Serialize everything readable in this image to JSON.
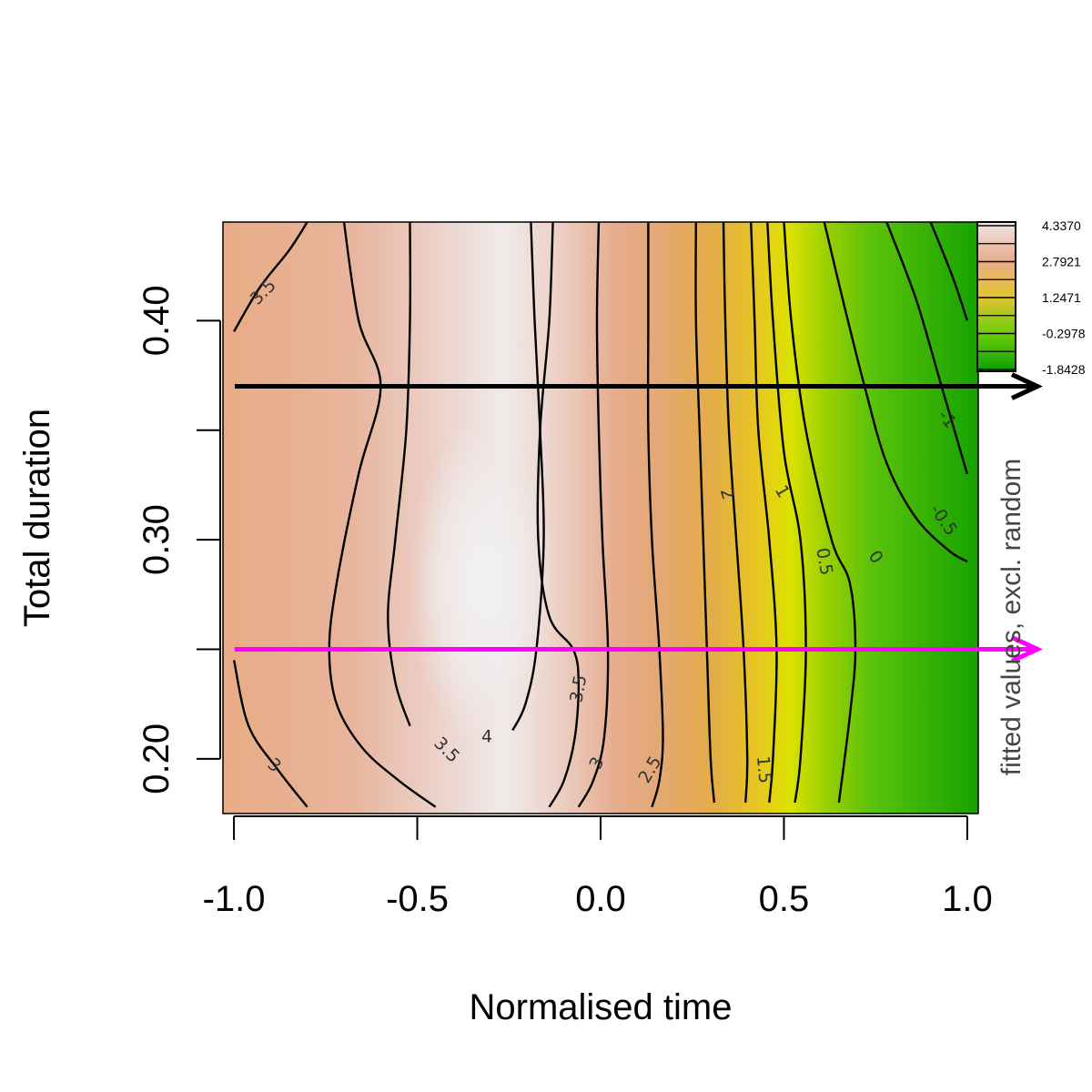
{
  "chart_data": {
    "type": "heatmap",
    "subtype": "contour",
    "xlabel": "Normalised time",
    "ylabel": "Total duration",
    "side_label": "fitted values, excl. random",
    "xlim": [
      -1.03,
      1.03
    ],
    "ylim": [
      0.175,
      0.445
    ],
    "x_ticks": [
      {
        "value": -1.0,
        "label": "-1.0"
      },
      {
        "value": -0.5,
        "label": "-0.5"
      },
      {
        "value": 0.0,
        "label": "0.0"
      },
      {
        "value": 0.5,
        "label": "0.5"
      },
      {
        "value": 1.0,
        "label": "1.0"
      }
    ],
    "y_ticks": [
      {
        "value": 0.2,
        "label": "0.20"
      },
      {
        "value": 0.25,
        "label": ""
      },
      {
        "value": 0.3,
        "label": "0.30"
      },
      {
        "value": 0.35,
        "label": ""
      },
      {
        "value": 0.4,
        "label": "0.40"
      }
    ],
    "z_range": [
      -1.8428,
      4.337
    ],
    "legend_labels": [
      "4.3370",
      "2.7921",
      "1.2471",
      "-0.2978",
      "-1.8428"
    ],
    "colors": {
      "high": "#f0f0f0",
      "upper_mid": "#e8a886",
      "mid": "#e5b434",
      "yellow": "#dfe000",
      "lower_mid": "#58c008",
      "low": "#00a000"
    },
    "contours": [
      {
        "level": "-1",
        "points": [
          [
            0.78,
            0.445
          ],
          [
            0.86,
            0.41
          ],
          [
            0.93,
            0.37
          ],
          [
            1.0,
            0.33
          ]
        ]
      },
      {
        "level": "-1",
        "points": [
          [
            0.9,
            0.445
          ],
          [
            0.96,
            0.42
          ],
          [
            1.0,
            0.4
          ]
        ]
      },
      {
        "level": "-0.5",
        "points": [
          [
            0.61,
            0.445
          ],
          [
            0.66,
            0.41
          ],
          [
            0.72,
            0.37
          ],
          [
            0.78,
            0.335
          ],
          [
            0.86,
            0.31
          ],
          [
            0.95,
            0.295
          ],
          [
            1.0,
            0.29
          ]
        ]
      },
      {
        "level": "0",
        "points": [
          [
            0.5,
            0.445
          ],
          [
            0.52,
            0.4
          ],
          [
            0.56,
            0.35
          ],
          [
            0.63,
            0.3
          ],
          [
            0.68,
            0.28
          ],
          [
            0.695,
            0.25
          ],
          [
            0.68,
            0.22
          ],
          [
            0.65,
            0.18
          ]
        ]
      },
      {
        "level": "0.5",
        "points": [
          [
            0.455,
            0.445
          ],
          [
            0.47,
            0.4
          ],
          [
            0.5,
            0.34
          ],
          [
            0.545,
            0.3
          ],
          [
            0.56,
            0.25
          ],
          [
            0.545,
            0.2
          ],
          [
            0.53,
            0.18
          ]
        ]
      },
      {
        "level": "1",
        "points": [
          [
            0.41,
            0.445
          ],
          [
            0.42,
            0.4
          ],
          [
            0.43,
            0.35
          ],
          [
            0.46,
            0.3
          ],
          [
            0.48,
            0.25
          ],
          [
            0.47,
            0.2
          ],
          [
            0.46,
            0.18
          ]
        ]
      },
      {
        "level": "1.5",
        "points": [
          [
            0.335,
            0.445
          ],
          [
            0.34,
            0.4
          ],
          [
            0.35,
            0.35
          ],
          [
            0.37,
            0.3
          ],
          [
            0.39,
            0.25
          ],
          [
            0.4,
            0.2
          ],
          [
            0.395,
            0.18
          ]
        ]
      },
      {
        "level": "2",
        "points": [
          [
            0.26,
            0.445
          ],
          [
            0.26,
            0.4
          ],
          [
            0.27,
            0.35
          ],
          [
            0.28,
            0.3
          ],
          [
            0.29,
            0.25
          ],
          [
            0.3,
            0.2
          ],
          [
            0.31,
            0.18
          ]
        ]
      },
      {
        "level": "2.5",
        "points": [
          [
            0.13,
            0.445
          ],
          [
            0.13,
            0.4
          ],
          [
            0.13,
            0.35
          ],
          [
            0.14,
            0.3
          ],
          [
            0.16,
            0.25
          ],
          [
            0.17,
            0.21
          ],
          [
            0.16,
            0.19
          ],
          [
            0.14,
            0.178
          ]
        ]
      },
      {
        "level": "3",
        "points": [
          [
            -0.005,
            0.445
          ],
          [
            -0.01,
            0.4
          ],
          [
            -0.005,
            0.35
          ],
          [
            0.005,
            0.3
          ],
          [
            0.02,
            0.25
          ],
          [
            0.01,
            0.21
          ],
          [
            -0.02,
            0.19
          ],
          [
            -0.06,
            0.178
          ]
        ]
      },
      {
        "level": "3.5",
        "points": [
          [
            -0.7,
            0.445
          ],
          [
            -0.66,
            0.4
          ],
          [
            -0.6,
            0.37
          ],
          [
            -0.66,
            0.33
          ],
          [
            -0.72,
            0.28
          ],
          [
            -0.74,
            0.25
          ],
          [
            -0.72,
            0.225
          ],
          [
            -0.65,
            0.205
          ],
          [
            -0.55,
            0.19
          ],
          [
            -0.45,
            0.178
          ]
        ]
      },
      {
        "level": "3.5",
        "points": [
          [
            -0.13,
            0.445
          ],
          [
            -0.14,
            0.4
          ],
          [
            -0.165,
            0.35
          ],
          [
            -0.17,
            0.3
          ],
          [
            -0.14,
            0.265
          ],
          [
            -0.075,
            0.25
          ],
          [
            -0.06,
            0.235
          ],
          [
            -0.07,
            0.21
          ],
          [
            -0.1,
            0.19
          ],
          [
            -0.14,
            0.178
          ]
        ]
      },
      {
        "level": "3",
        "points": [
          [
            -1.0,
            0.245
          ],
          [
            -0.96,
            0.215
          ],
          [
            -0.88,
            0.195
          ],
          [
            -0.8,
            0.178
          ]
        ]
      },
      {
        "level": "3.5",
        "points": [
          [
            -1.0,
            0.395
          ],
          [
            -0.93,
            0.415
          ],
          [
            -0.85,
            0.432
          ],
          [
            -0.8,
            0.445
          ]
        ]
      },
      {
        "level": "4",
        "points": [
          [
            -0.52,
            0.445
          ],
          [
            -0.52,
            0.4
          ],
          [
            -0.53,
            0.35
          ],
          [
            -0.56,
            0.3
          ],
          [
            -0.58,
            0.265
          ],
          [
            -0.56,
            0.235
          ],
          [
            -0.52,
            0.215
          ]
        ]
      },
      {
        "level": "4",
        "points": [
          [
            -0.24,
            0.213
          ],
          [
            -0.205,
            0.225
          ],
          [
            -0.175,
            0.25
          ],
          [
            -0.155,
            0.3
          ],
          [
            -0.165,
            0.35
          ],
          [
            -0.18,
            0.4
          ],
          [
            -0.19,
            0.445
          ]
        ]
      }
    ],
    "contour_labels": [
      {
        "text": "3.5",
        "x": -0.92,
        "y": 0.413,
        "angle": -45
      },
      {
        "text": "3",
        "x": -0.89,
        "y": 0.197,
        "angle": 40
      },
      {
        "text": "3.5",
        "x": -0.42,
        "y": 0.204,
        "angle": 45
      },
      {
        "text": "4",
        "x": -0.31,
        "y": 0.21,
        "angle": 0
      },
      {
        "text": "3.5",
        "x": -0.06,
        "y": 0.232,
        "angle": -80
      },
      {
        "text": "3",
        "x": -0.01,
        "y": 0.198,
        "angle": -65
      },
      {
        "text": "2.5",
        "x": 0.135,
        "y": 0.195,
        "angle": -60
      },
      {
        "text": "2",
        "x": 0.345,
        "y": 0.321,
        "angle": 72
      },
      {
        "text": "1.5",
        "x": 0.445,
        "y": 0.195,
        "angle": 85
      },
      {
        "text": "1",
        "x": 0.495,
        "y": 0.322,
        "angle": 60
      },
      {
        "text": "0.5",
        "x": 0.61,
        "y": 0.29,
        "angle": 80
      },
      {
        "text": "0",
        "x": 0.75,
        "y": 0.292,
        "angle": 55
      },
      {
        "text": "-0.5",
        "x": 0.935,
        "y": 0.309,
        "angle": 55
      },
      {
        "text": "-1",
        "x": 0.945,
        "y": 0.355,
        "angle": 50
      }
    ],
    "arrows": [
      {
        "color": "#000000",
        "y": 0.37
      },
      {
        "color": "#ff00ff",
        "y": 0.25
      }
    ]
  }
}
